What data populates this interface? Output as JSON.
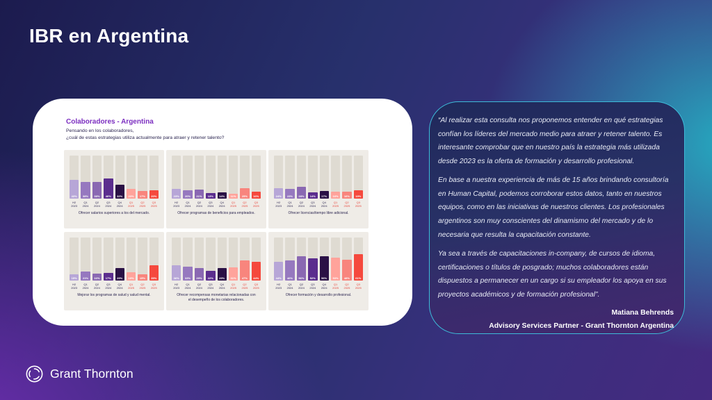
{
  "slide": {
    "title": "IBR en Argentina"
  },
  "brand": {
    "name": "Grant Thornton"
  },
  "panel": {
    "heading": "Colaboradores - Argentina",
    "subtitle": {
      "line1": "Pensando en los colaboradores,",
      "line2": "¿cuál de estas estrategias utiliza actualmente para atraer y retener talento?"
    }
  },
  "quote": {
    "paragraphs": [
      "“Al realizar esta consulta nos proponemos entender en qué estrategias confían los líderes del mercado medio para atraer y retener talento. Es interesante comprobar que en nuestro país la estrategia más utilizada desde 2023 es la oferta de formación y desarrollo profesional.",
      "En base a nuestra experiencia de más de 15 años brindando consultoría en Human Capital, podemos corroborar estos datos, tanto en nuestros equipos, como en las iniciativas de nuestros clientes. Los profesionales argentinos son muy conscientes del dinamismo del mercado y de lo necesaria que resulta la capacitación constante.",
      "Ya sea a través de capacitaciones in-company, de cursos de idioma, certificaciones o títulos de posgrado; muchos colaboradores están dispuestos a permanecer en un cargo si su empleador los apoya en sus proyectos académicos y de formación profesional”."
    ],
    "author": "Matiana Behrends",
    "role": "Advisory Services Partner - Grant Thornton Argentina"
  },
  "colors": {
    "accent_purple": "#7c2fc0",
    "quote_border": "#3dbbd9",
    "label_navy": "#2b2550",
    "label_red": "#e8453c",
    "tile_background": "#efece7",
    "track_background": "#dfdbd2"
  },
  "chart_data": {
    "type": "bar",
    "unit": "%",
    "ylim": [
      0,
      100
    ],
    "grid": false,
    "legend": "none",
    "categories": [
      "H2 2023",
      "Q1 2024",
      "Q2 2024",
      "Q3 2024",
      "Q4 2024",
      "Q1 2025",
      "Q2 2025",
      "Q3 2025"
    ],
    "recent_category_indices": [
      5,
      6,
      7
    ],
    "bar_colors": [
      "#b7a6d7",
      "#9678bf",
      "#8a68b2",
      "#5b2d8e",
      "#2a1045",
      "#ffa39b",
      "#f8857d",
      "#f5493d"
    ],
    "charts": [
      {
        "caption": "Ofrecer salarios superiores a los del mercado.",
        "values": [
          43,
          38,
          38,
          46,
          32,
          23,
          17,
          20
        ]
      },
      {
        "caption": "Ofrecer programas de beneficios para empleados.",
        "values": [
          23,
          20,
          21,
          13,
          14,
          11,
          25,
          16
        ]
      },
      {
        "caption": "Ofrecer licencias/tiempo libre adicional.",
        "values": [
          24,
          23,
          28,
          14,
          17,
          16,
          16,
          19
        ]
      },
      {
        "caption": "Mejorar los programas de salud y salud mental.",
        "values": [
          15,
          21,
          16,
          17,
          29,
          19,
          15,
          35
        ]
      },
      {
        "caption": "Ofrecer recompensas monetarias relacionadas con el desempeño de los colaboradores.",
        "values": [
          36,
          33,
          29,
          22,
          29,
          31,
          47,
          44
        ]
      },
      {
        "caption": "Ofrecer formación y desarrollo profesional.",
        "values": [
          44,
          46,
          56,
          52,
          56,
          53,
          48,
          61
        ]
      }
    ]
  }
}
